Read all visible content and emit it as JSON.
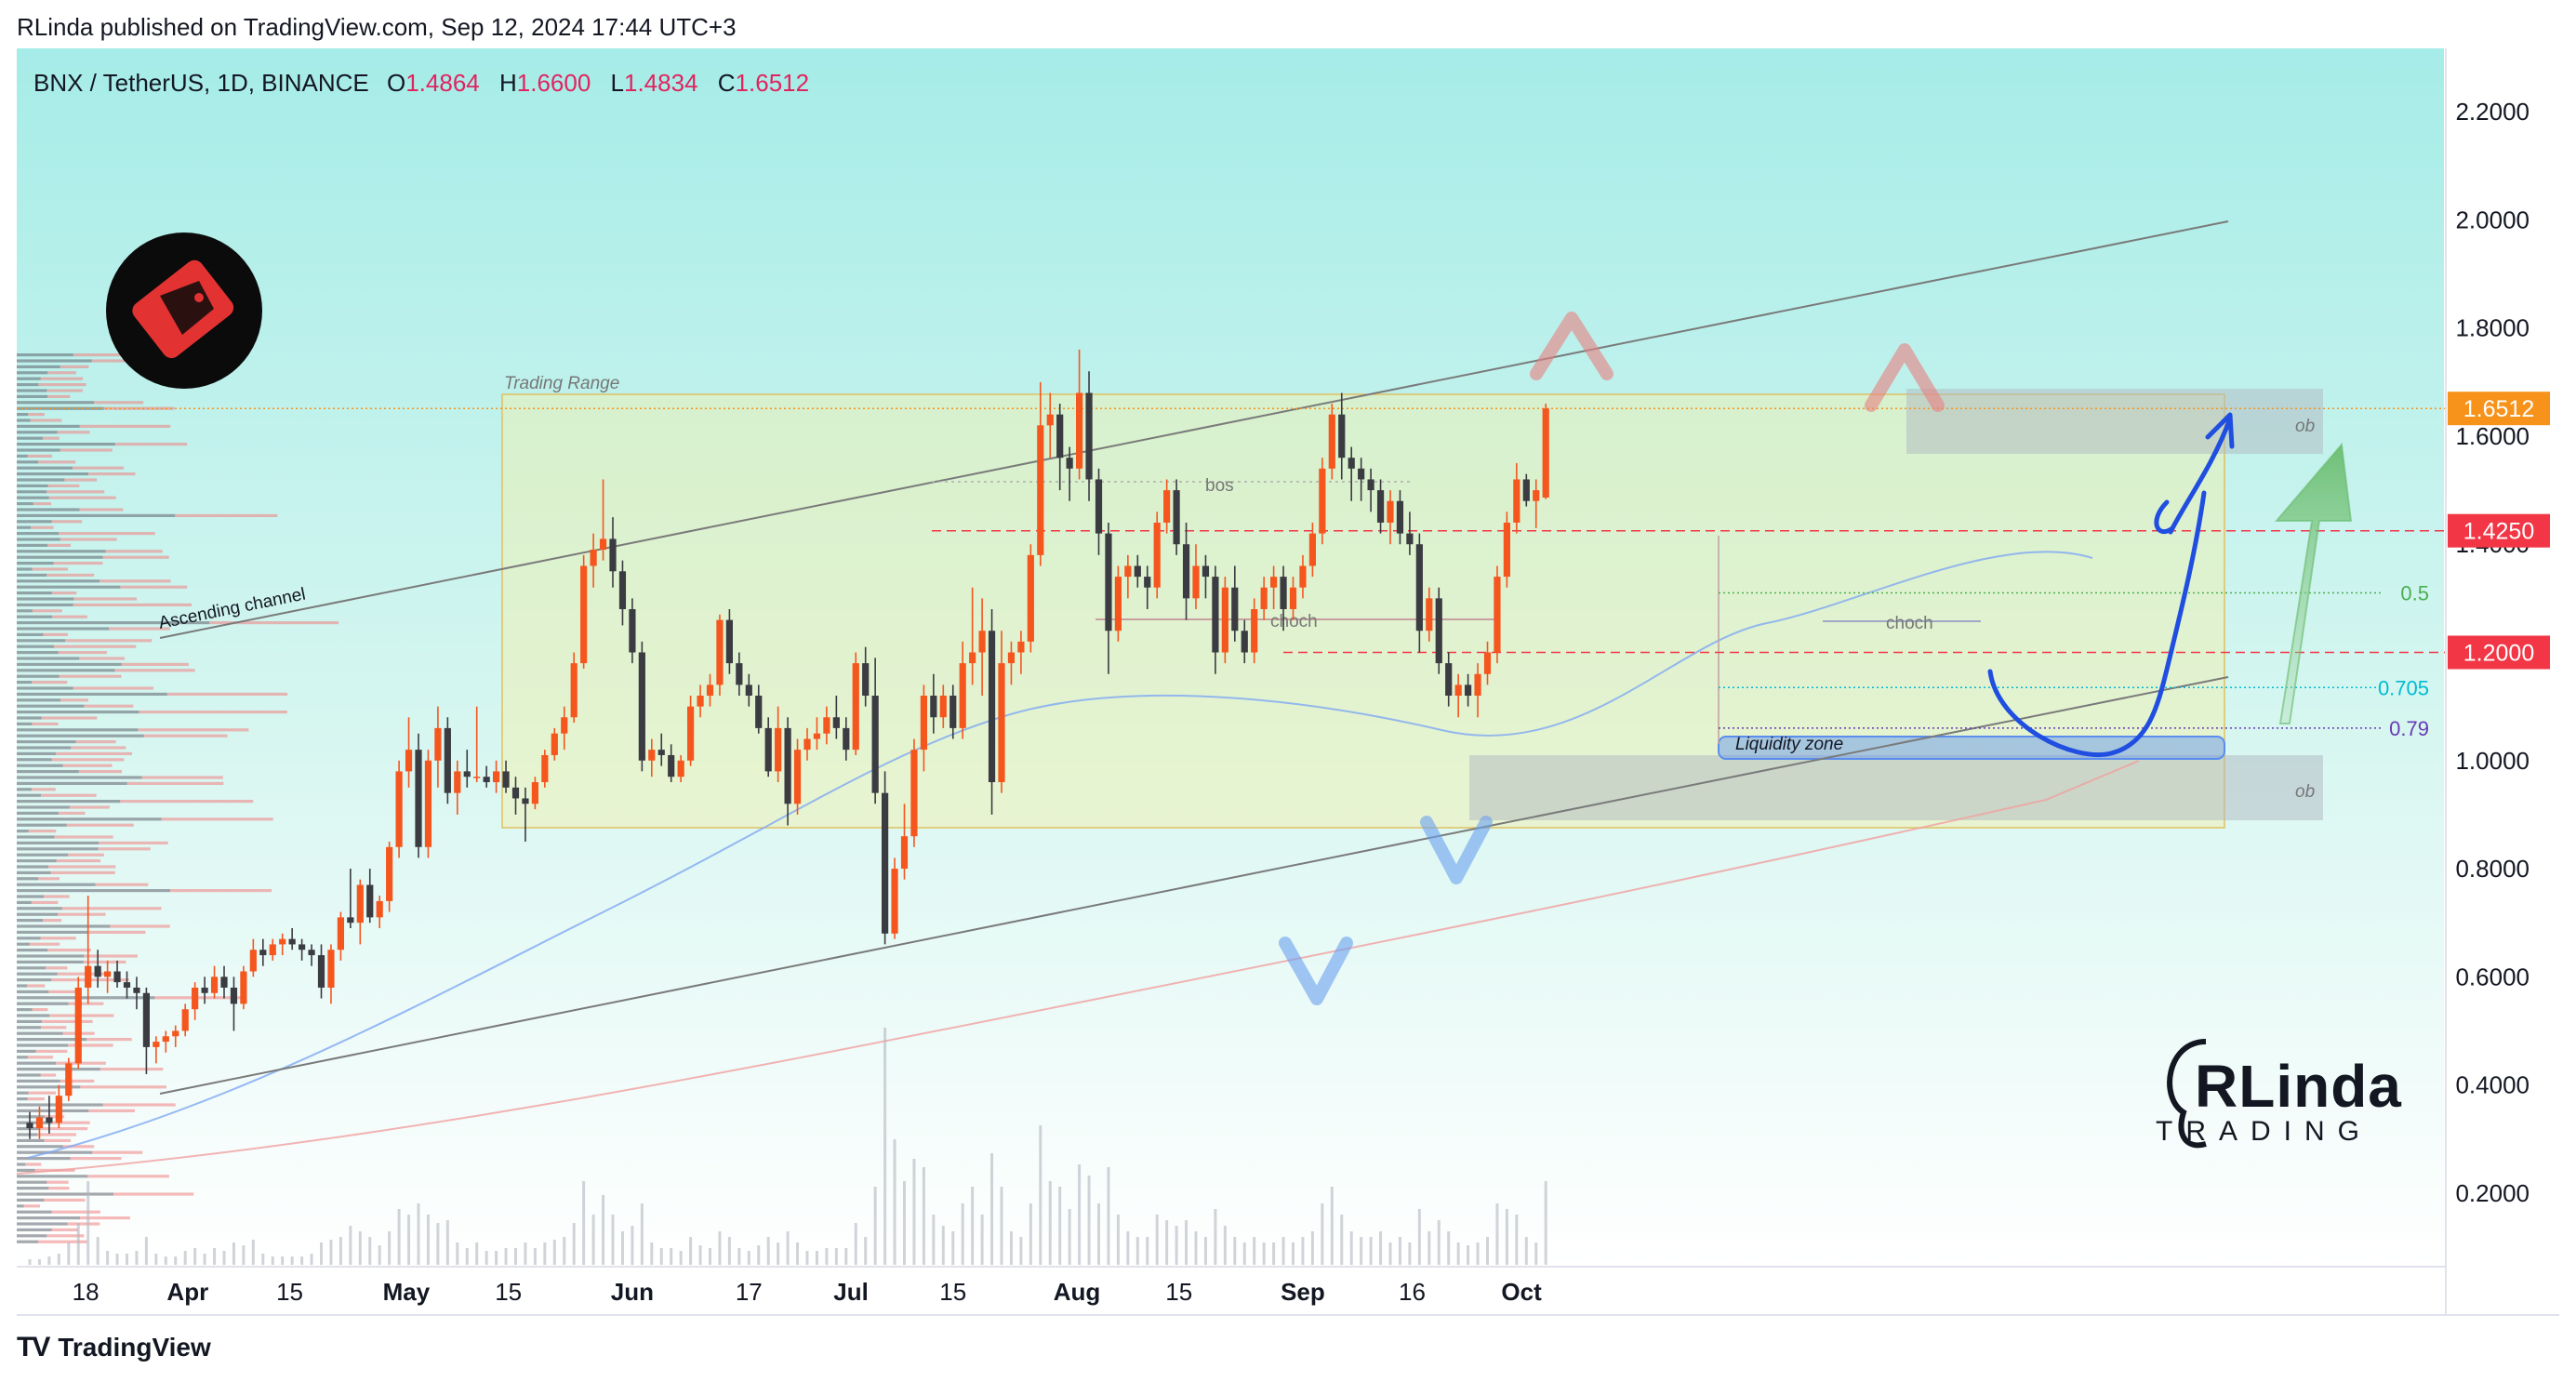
{
  "header": {
    "publish_line": "RLinda published on TradingView.com, Sep 12, 2024 17:44 UTC+3"
  },
  "footer": {
    "brand_logo": "TV",
    "brand": "TradingView"
  },
  "legend": {
    "symbol": "BNX / TetherUS, 1D, BINANCE",
    "o_label": "O",
    "o_value": "1.4864",
    "h_label": "H",
    "h_value": "1.6600",
    "l_label": "L",
    "l_value": "1.4834",
    "c_label": "C",
    "c_value": "1.6512"
  },
  "watermark": {
    "line1": "RLinda",
    "line2": "TRADING"
  },
  "chart_data": {
    "type": "candlestick",
    "ylim": [
      0.1,
      2.3
    ],
    "y_ticks": [
      {
        "v": 2.2,
        "label": "2.2000"
      },
      {
        "v": 2.0,
        "label": "2.0000"
      },
      {
        "v": 1.8,
        "label": "1.8000"
      },
      {
        "v": 1.6,
        "label": "1.6000"
      },
      {
        "v": 1.4,
        "label": "1.4000"
      },
      {
        "v": 1.2,
        "label": "1.2000"
      },
      {
        "v": 1.0,
        "label": "1.0000"
      },
      {
        "v": 0.8,
        "label": "0.8000"
      },
      {
        "v": 0.6,
        "label": "0.6000"
      },
      {
        "v": 0.4,
        "label": "0.4000"
      },
      {
        "v": 0.2,
        "label": "0.2000"
      }
    ],
    "x_ticks": [
      {
        "t": 7,
        "label": "18"
      },
      {
        "t": 21,
        "label": "Apr"
      },
      {
        "t": 35,
        "label": "15"
      },
      {
        "t": 51,
        "label": "May"
      },
      {
        "t": 65,
        "label": "15"
      },
      {
        "t": 82,
        "label": "Jun"
      },
      {
        "t": 98,
        "label": "17"
      },
      {
        "t": 112,
        "label": "Jul"
      },
      {
        "t": 126,
        "label": "15"
      },
      {
        "t": 143,
        "label": "Aug"
      },
      {
        "t": 157,
        "label": "15"
      },
      {
        "t": 174,
        "label": "Sep"
      },
      {
        "t": 189,
        "label": "16"
      },
      {
        "t": 204,
        "label": "Oct"
      }
    ],
    "price_labels": [
      {
        "value": 1.6512,
        "label": "1.6512",
        "color": "#f7931a"
      },
      {
        "value": 1.425,
        "label": "1.4250",
        "color": "#f23645"
      },
      {
        "value": 1.2,
        "label": "1.2000",
        "color": "#f23645"
      }
    ],
    "fib_levels": [
      {
        "value": 1.31,
        "label": "0.5",
        "color": "#4caf50"
      },
      {
        "value": 1.135,
        "label": "0.705",
        "color": "#00bcd4"
      },
      {
        "value": 1.06,
        "label": "0.79",
        "color": "#673ab7"
      }
    ],
    "annotations": {
      "trading_range": "Trading Range",
      "channel": "Ascending channel",
      "bos": "bos",
      "choch1": "choch",
      "choch2": "choch",
      "ob1": "ob",
      "ob2": "ob",
      "liquidity": "Liquidity zone"
    },
    "candles": [
      [
        0.33,
        0.35,
        0.3,
        0.32
      ],
      [
        0.32,
        0.36,
        0.3,
        0.34
      ],
      [
        0.34,
        0.38,
        0.31,
        0.33
      ],
      [
        0.33,
        0.4,
        0.32,
        0.38
      ],
      [
        0.38,
        0.45,
        0.37,
        0.44
      ],
      [
        0.44,
        0.6,
        0.43,
        0.58
      ],
      [
        0.58,
        0.75,
        0.55,
        0.62
      ],
      [
        0.62,
        0.65,
        0.58,
        0.6
      ],
      [
        0.6,
        0.63,
        0.57,
        0.61
      ],
      [
        0.61,
        0.63,
        0.58,
        0.59
      ],
      [
        0.59,
        0.61,
        0.56,
        0.58
      ],
      [
        0.58,
        0.6,
        0.54,
        0.57
      ],
      [
        0.57,
        0.58,
        0.42,
        0.47
      ],
      [
        0.47,
        0.49,
        0.44,
        0.48
      ],
      [
        0.48,
        0.5,
        0.46,
        0.49
      ],
      [
        0.49,
        0.51,
        0.47,
        0.5
      ],
      [
        0.5,
        0.55,
        0.49,
        0.54
      ],
      [
        0.54,
        0.59,
        0.52,
        0.58
      ],
      [
        0.58,
        0.6,
        0.55,
        0.57
      ],
      [
        0.57,
        0.62,
        0.56,
        0.6
      ],
      [
        0.6,
        0.62,
        0.56,
        0.58
      ],
      [
        0.58,
        0.6,
        0.5,
        0.55
      ],
      [
        0.55,
        0.62,
        0.54,
        0.61
      ],
      [
        0.61,
        0.67,
        0.6,
        0.65
      ],
      [
        0.65,
        0.67,
        0.62,
        0.64
      ],
      [
        0.64,
        0.67,
        0.63,
        0.66
      ],
      [
        0.66,
        0.68,
        0.64,
        0.67
      ],
      [
        0.67,
        0.69,
        0.65,
        0.66
      ],
      [
        0.66,
        0.67,
        0.63,
        0.65
      ],
      [
        0.65,
        0.66,
        0.62,
        0.64
      ],
      [
        0.64,
        0.66,
        0.56,
        0.58
      ],
      [
        0.58,
        0.66,
        0.55,
        0.65
      ],
      [
        0.65,
        0.72,
        0.63,
        0.71
      ],
      [
        0.71,
        0.8,
        0.69,
        0.7
      ],
      [
        0.7,
        0.78,
        0.66,
        0.77
      ],
      [
        0.77,
        0.8,
        0.7,
        0.71
      ],
      [
        0.71,
        0.75,
        0.69,
        0.74
      ],
      [
        0.74,
        0.85,
        0.72,
        0.84
      ],
      [
        0.84,
        1.0,
        0.82,
        0.98
      ],
      [
        0.98,
        1.08,
        0.95,
        1.02
      ],
      [
        1.02,
        1.05,
        0.82,
        0.84
      ],
      [
        0.84,
        1.02,
        0.82,
        1.0
      ],
      [
        1.0,
        1.1,
        0.95,
        1.06
      ],
      [
        1.06,
        1.08,
        0.92,
        0.94
      ],
      [
        0.94,
        1.0,
        0.9,
        0.98
      ],
      [
        0.98,
        1.02,
        0.95,
        0.97
      ],
      [
        0.97,
        1.1,
        0.96,
        0.97
      ],
      [
        0.97,
        0.99,
        0.95,
        0.96
      ],
      [
        0.96,
        1.0,
        0.94,
        0.98
      ],
      [
        0.98,
        1.0,
        0.94,
        0.95
      ],
      [
        0.95,
        0.97,
        0.9,
        0.93
      ],
      [
        0.93,
        0.95,
        0.85,
        0.92
      ],
      [
        0.92,
        0.97,
        0.91,
        0.96
      ],
      [
        0.96,
        1.02,
        0.95,
        1.01
      ],
      [
        1.01,
        1.06,
        1.0,
        1.05
      ],
      [
        1.05,
        1.1,
        1.02,
        1.08
      ],
      [
        1.08,
        1.2,
        1.07,
        1.18
      ],
      [
        1.18,
        1.38,
        1.17,
        1.36
      ],
      [
        1.36,
        1.42,
        1.32,
        1.39
      ],
      [
        1.39,
        1.52,
        1.37,
        1.41
      ],
      [
        1.41,
        1.45,
        1.32,
        1.35
      ],
      [
        1.35,
        1.37,
        1.25,
        1.28
      ],
      [
        1.28,
        1.3,
        1.18,
        1.2
      ],
      [
        1.2,
        1.22,
        0.98,
        1.0
      ],
      [
        1.0,
        1.04,
        0.97,
        1.02
      ],
      [
        1.02,
        1.05,
        0.99,
        1.01
      ],
      [
        1.01,
        1.03,
        0.96,
        0.97
      ],
      [
        0.97,
        1.01,
        0.96,
        1.0
      ],
      [
        1.0,
        1.12,
        0.99,
        1.1
      ],
      [
        1.1,
        1.14,
        1.08,
        1.12
      ],
      [
        1.12,
        1.16,
        1.1,
        1.14
      ],
      [
        1.14,
        1.27,
        1.12,
        1.26
      ],
      [
        1.26,
        1.28,
        1.16,
        1.18
      ],
      [
        1.18,
        1.2,
        1.12,
        1.14
      ],
      [
        1.14,
        1.16,
        1.1,
        1.12
      ],
      [
        1.12,
        1.14,
        1.05,
        1.06
      ],
      [
        1.06,
        1.08,
        0.97,
        0.98
      ],
      [
        0.98,
        1.1,
        0.96,
        1.06
      ],
      [
        1.06,
        1.08,
        0.88,
        0.92
      ],
      [
        0.92,
        1.04,
        0.9,
        1.02
      ],
      [
        1.02,
        1.06,
        1.0,
        1.04
      ],
      [
        1.04,
        1.08,
        1.02,
        1.05
      ],
      [
        1.05,
        1.1,
        1.03,
        1.08
      ],
      [
        1.08,
        1.12,
        1.04,
        1.06
      ],
      [
        1.06,
        1.08,
        1.0,
        1.02
      ],
      [
        1.02,
        1.2,
        1.01,
        1.18
      ],
      [
        1.18,
        1.21,
        1.1,
        1.12
      ],
      [
        1.12,
        1.19,
        0.92,
        0.94
      ],
      [
        0.94,
        0.98,
        0.66,
        0.68
      ],
      [
        0.68,
        0.82,
        0.67,
        0.8
      ],
      [
        0.8,
        0.92,
        0.78,
        0.86
      ],
      [
        0.86,
        1.04,
        0.84,
        1.02
      ],
      [
        1.02,
        1.14,
        0.98,
        1.12
      ],
      [
        1.12,
        1.16,
        1.05,
        1.08
      ],
      [
        1.08,
        1.14,
        1.06,
        1.12
      ],
      [
        1.12,
        1.14,
        1.04,
        1.06
      ],
      [
        1.06,
        1.22,
        1.04,
        1.18
      ],
      [
        1.18,
        1.32,
        1.14,
        1.2
      ],
      [
        1.2,
        1.3,
        1.12,
        1.24
      ],
      [
        1.24,
        1.28,
        0.9,
        0.96
      ],
      [
        0.96,
        1.24,
        0.94,
        1.18
      ],
      [
        1.18,
        1.22,
        1.14,
        1.2
      ],
      [
        1.2,
        1.24,
        1.16,
        1.22
      ],
      [
        1.22,
        1.4,
        1.2,
        1.38
      ],
      [
        1.38,
        1.7,
        1.36,
        1.62
      ],
      [
        1.62,
        1.68,
        1.56,
        1.64
      ],
      [
        1.64,
        1.66,
        1.5,
        1.56
      ],
      [
        1.56,
        1.58,
        1.48,
        1.54
      ],
      [
        1.54,
        1.76,
        1.52,
        1.68
      ],
      [
        1.68,
        1.72,
        1.48,
        1.52
      ],
      [
        1.52,
        1.54,
        1.38,
        1.42
      ],
      [
        1.42,
        1.44,
        1.16,
        1.24
      ],
      [
        1.24,
        1.36,
        1.22,
        1.34
      ],
      [
        1.34,
        1.38,
        1.3,
        1.36
      ],
      [
        1.36,
        1.38,
        1.32,
        1.34
      ],
      [
        1.34,
        1.36,
        1.28,
        1.32
      ],
      [
        1.32,
        1.46,
        1.3,
        1.44
      ],
      [
        1.44,
        1.52,
        1.42,
        1.5
      ],
      [
        1.5,
        1.52,
        1.38,
        1.4
      ],
      [
        1.4,
        1.44,
        1.26,
        1.3
      ],
      [
        1.3,
        1.4,
        1.28,
        1.36
      ],
      [
        1.36,
        1.38,
        1.3,
        1.34
      ],
      [
        1.34,
        1.36,
        1.16,
        1.2
      ],
      [
        1.2,
        1.34,
        1.18,
        1.32
      ],
      [
        1.32,
        1.36,
        1.22,
        1.24
      ],
      [
        1.24,
        1.26,
        1.18,
        1.2
      ],
      [
        1.2,
        1.3,
        1.18,
        1.28
      ],
      [
        1.28,
        1.34,
        1.26,
        1.32
      ],
      [
        1.32,
        1.36,
        1.28,
        1.34
      ],
      [
        1.34,
        1.36,
        1.24,
        1.28
      ],
      [
        1.28,
        1.34,
        1.26,
        1.32
      ],
      [
        1.32,
        1.38,
        1.3,
        1.36
      ],
      [
        1.36,
        1.44,
        1.34,
        1.42
      ],
      [
        1.42,
        1.56,
        1.4,
        1.54
      ],
      [
        1.54,
        1.66,
        1.52,
        1.64
      ],
      [
        1.64,
        1.68,
        1.52,
        1.56
      ],
      [
        1.56,
        1.58,
        1.48,
        1.54
      ],
      [
        1.54,
        1.56,
        1.48,
        1.52
      ],
      [
        1.52,
        1.54,
        1.46,
        1.5
      ],
      [
        1.5,
        1.52,
        1.42,
        1.44
      ],
      [
        1.44,
        1.5,
        1.4,
        1.48
      ],
      [
        1.48,
        1.5,
        1.4,
        1.42
      ],
      [
        1.42,
        1.46,
        1.38,
        1.4
      ],
      [
        1.4,
        1.42,
        1.2,
        1.24
      ],
      [
        1.24,
        1.32,
        1.22,
        1.3
      ],
      [
        1.3,
        1.32,
        1.16,
        1.18
      ],
      [
        1.18,
        1.2,
        1.1,
        1.12
      ],
      [
        1.12,
        1.16,
        1.08,
        1.14
      ],
      [
        1.14,
        1.16,
        1.1,
        1.12
      ],
      [
        1.12,
        1.18,
        1.08,
        1.16
      ],
      [
        1.16,
        1.22,
        1.14,
        1.2
      ],
      [
        1.2,
        1.36,
        1.18,
        1.34
      ],
      [
        1.34,
        1.46,
        1.32,
        1.44
      ],
      [
        1.44,
        1.55,
        1.42,
        1.52
      ],
      [
        1.52,
        1.53,
        1.47,
        1.48
      ],
      [
        1.48,
        1.52,
        1.43,
        1.5
      ],
      [
        1.4864,
        1.66,
        1.4834,
        1.6512
      ]
    ],
    "volume": [
      0.02,
      0.02,
      0.03,
      0.04,
      0.08,
      0.15,
      0.3,
      0.1,
      0.05,
      0.04,
      0.04,
      0.05,
      0.1,
      0.04,
      0.03,
      0.03,
      0.05,
      0.06,
      0.04,
      0.06,
      0.05,
      0.08,
      0.07,
      0.09,
      0.04,
      0.03,
      0.03,
      0.03,
      0.03,
      0.04,
      0.08,
      0.09,
      0.1,
      0.14,
      0.12,
      0.1,
      0.07,
      0.12,
      0.2,
      0.18,
      0.22,
      0.18,
      0.15,
      0.16,
      0.08,
      0.06,
      0.08,
      0.05,
      0.05,
      0.06,
      0.06,
      0.08,
      0.06,
      0.08,
      0.09,
      0.1,
      0.15,
      0.3,
      0.18,
      0.25,
      0.18,
      0.12,
      0.14,
      0.22,
      0.08,
      0.06,
      0.06,
      0.05,
      0.1,
      0.07,
      0.06,
      0.12,
      0.1,
      0.06,
      0.05,
      0.07,
      0.1,
      0.08,
      0.12,
      0.08,
      0.05,
      0.05,
      0.06,
      0.06,
      0.06,
      0.15,
      0.1,
      0.28,
      0.85,
      0.45,
      0.3,
      0.38,
      0.35,
      0.18,
      0.14,
      0.12,
      0.22,
      0.28,
      0.18,
      0.4,
      0.28,
      0.12,
      0.1,
      0.22,
      0.5,
      0.3,
      0.28,
      0.2,
      0.36,
      0.32,
      0.22,
      0.35,
      0.18,
      0.12,
      0.1,
      0.1,
      0.18,
      0.16,
      0.14,
      0.16,
      0.12,
      0.1,
      0.2,
      0.14,
      0.1,
      0.08,
      0.1,
      0.08,
      0.08,
      0.1,
      0.08,
      0.1,
      0.12,
      0.22,
      0.28,
      0.18,
      0.12,
      0.1,
      0.1,
      0.12,
      0.08,
      0.1,
      0.08,
      0.2,
      0.12,
      0.16,
      0.12,
      0.08,
      0.07,
      0.08,
      0.1,
      0.22,
      0.2,
      0.18,
      0.1,
      0.08,
      0.3
    ]
  }
}
